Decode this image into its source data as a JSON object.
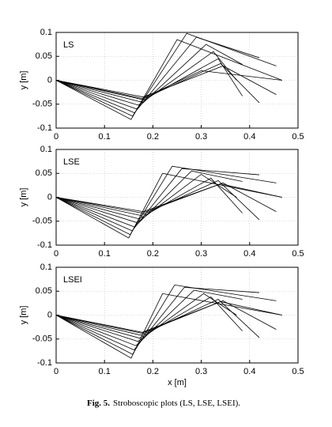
{
  "chart_data": [
    {
      "type": "line",
      "label": "LS",
      "ylabel": "y [m]",
      "xlim": [
        0,
        0.5
      ],
      "ylim": [
        -0.1,
        0.1
      ],
      "xticks": [
        0,
        0.1,
        0.2,
        0.3,
        0.4,
        0.5
      ],
      "yticks": [
        -0.1,
        -0.05,
        0,
        0.05,
        0.1
      ],
      "grid": true,
      "color": "#000000",
      "poses": [
        {
          "x": [
            0,
            0.155,
            0.25,
            0.467
          ],
          "y": [
            0,
            -0.082,
            0.085,
            0
          ]
        },
        {
          "x": [
            0,
            0.158,
            0.27,
            0.455
          ],
          "y": [
            0,
            -0.075,
            0.098,
            0.03
          ]
        },
        {
          "x": [
            0,
            0.162,
            0.29,
            0.42
          ],
          "y": [
            0,
            -0.068,
            0.09,
            0.047
          ]
        },
        {
          "x": [
            0,
            0.166,
            0.31,
            0.385
          ],
          "y": [
            0,
            -0.06,
            0.075,
            0.033
          ]
        },
        {
          "x": [
            0,
            0.17,
            0.325,
            0.373
          ],
          "y": [
            0,
            -0.052,
            0.06,
            0
          ]
        },
        {
          "x": [
            0,
            0.174,
            0.335,
            0.385
          ],
          "y": [
            0,
            -0.045,
            0.045,
            -0.033
          ]
        },
        {
          "x": [
            0,
            0.177,
            0.34,
            0.42
          ],
          "y": [
            0,
            -0.04,
            0.035,
            -0.047
          ]
        },
        {
          "x": [
            0,
            0.18,
            0.345,
            0.455
          ],
          "y": [
            0,
            -0.035,
            0.03,
            -0.03
          ]
        },
        {
          "x": [
            0,
            0.178,
            0.3,
            0.467
          ],
          "y": [
            0,
            -0.038,
            0.02,
            0
          ]
        }
      ]
    },
    {
      "type": "line",
      "label": "LSE",
      "ylabel": "y [m]",
      "xlim": [
        0,
        0.5
      ],
      "ylim": [
        -0.1,
        0.1
      ],
      "xticks": [
        0,
        0.1,
        0.2,
        0.3,
        0.4,
        0.5
      ],
      "yticks": [
        -0.1,
        -0.05,
        0,
        0.05,
        0.1
      ],
      "grid": true,
      "color": "#000000",
      "poses": [
        {
          "x": [
            0,
            0.15,
            0.22,
            0.467
          ],
          "y": [
            0,
            -0.085,
            0.05,
            0
          ]
        },
        {
          "x": [
            0,
            0.153,
            0.24,
            0.455
          ],
          "y": [
            0,
            -0.078,
            0.065,
            0.03
          ]
        },
        {
          "x": [
            0,
            0.157,
            0.26,
            0.42
          ],
          "y": [
            0,
            -0.07,
            0.06,
            0.047
          ]
        },
        {
          "x": [
            0,
            0.162,
            0.28,
            0.385
          ],
          "y": [
            0,
            -0.062,
            0.055,
            0.033
          ]
        },
        {
          "x": [
            0,
            0.167,
            0.3,
            0.373
          ],
          "y": [
            0,
            -0.053,
            0.048,
            0
          ]
        },
        {
          "x": [
            0,
            0.171,
            0.32,
            0.385
          ],
          "y": [
            0,
            -0.045,
            0.04,
            -0.033
          ]
        },
        {
          "x": [
            0,
            0.175,
            0.335,
            0.42
          ],
          "y": [
            0,
            -0.038,
            0.035,
            -0.047
          ]
        },
        {
          "x": [
            0,
            0.178,
            0.345,
            0.455
          ],
          "y": [
            0,
            -0.033,
            0.03,
            -0.03
          ]
        },
        {
          "x": [
            0,
            0.18,
            0.34,
            0.467
          ],
          "y": [
            0,
            -0.03,
            0.028,
            0
          ]
        }
      ]
    },
    {
      "type": "line",
      "label": "LSEI",
      "ylabel": "y [m]",
      "xlabel": "x [m]",
      "xlim": [
        0,
        0.5
      ],
      "ylim": [
        -0.1,
        0.1
      ],
      "xticks": [
        0,
        0.1,
        0.2,
        0.3,
        0.4,
        0.5
      ],
      "yticks": [
        -0.1,
        -0.05,
        0,
        0.05,
        0.1
      ],
      "grid": true,
      "color": "#000000",
      "poses": [
        {
          "x": [
            0,
            0.155,
            0.22,
            0.467
          ],
          "y": [
            0,
            -0.09,
            0.045,
            0
          ]
        },
        {
          "x": [
            0,
            0.158,
            0.245,
            0.455
          ],
          "y": [
            0,
            -0.082,
            0.063,
            0.03
          ]
        },
        {
          "x": [
            0,
            0.161,
            0.265,
            0.42
          ],
          "y": [
            0,
            -0.073,
            0.058,
            0.047
          ]
        },
        {
          "x": [
            0,
            0.165,
            0.285,
            0.385
          ],
          "y": [
            0,
            -0.064,
            0.052,
            0.033
          ]
        },
        {
          "x": [
            0,
            0.169,
            0.305,
            0.373
          ],
          "y": [
            0,
            -0.055,
            0.045,
            0
          ]
        },
        {
          "x": [
            0,
            0.172,
            0.32,
            0.385
          ],
          "y": [
            0,
            -0.048,
            0.038,
            -0.033
          ]
        },
        {
          "x": [
            0,
            0.175,
            0.335,
            0.42
          ],
          "y": [
            0,
            -0.042,
            0.033,
            -0.047
          ]
        },
        {
          "x": [
            0,
            0.177,
            0.345,
            0.455
          ],
          "y": [
            0,
            -0.038,
            0.03,
            -0.03
          ]
        },
        {
          "x": [
            0,
            0.178,
            0.34,
            0.467
          ],
          "y": [
            0,
            -0.036,
            0.028,
            0
          ]
        }
      ]
    }
  ],
  "caption": {
    "label": "Fig. 5.",
    "text": "Stroboscopic plots (LS, LSE, LSEI)."
  }
}
